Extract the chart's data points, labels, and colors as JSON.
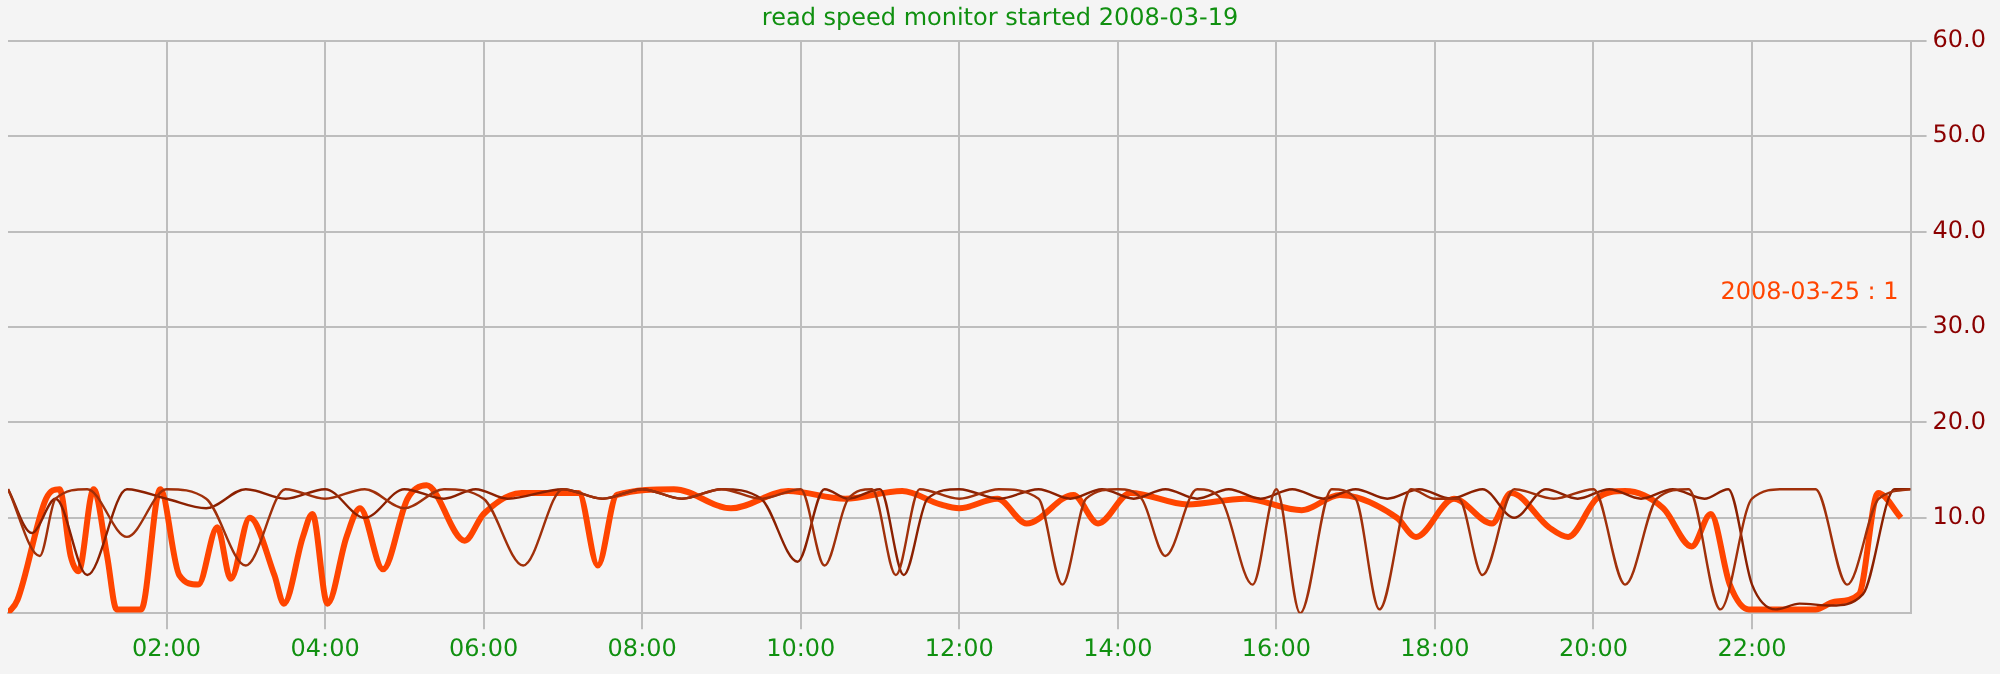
{
  "chart_data": {
    "type": "line",
    "title": "read speed monitor started 2008-03-19",
    "xlim": [
      0,
      24
    ],
    "xticks": [
      {
        "value": 2,
        "label": "02:00"
      },
      {
        "value": 4,
        "label": "04:00"
      },
      {
        "value": 6,
        "label": "06:00"
      },
      {
        "value": 8,
        "label": "08:00"
      },
      {
        "value": 10,
        "label": "10:00"
      },
      {
        "value": 12,
        "label": "12:00"
      },
      {
        "value": 14,
        "label": "14:00"
      },
      {
        "value": 16,
        "label": "16:00"
      },
      {
        "value": 18,
        "label": "18:00"
      },
      {
        "value": 20,
        "label": "20:00"
      },
      {
        "value": 22,
        "label": "22:00"
      }
    ],
    "ylim": [
      0,
      60
    ],
    "yticks": [
      {
        "value": 10,
        "label": "10.0"
      },
      {
        "value": 20,
        "label": "20.0"
      },
      {
        "value": 30,
        "label": "30.0"
      },
      {
        "value": 40,
        "label": "40.0"
      },
      {
        "value": 50,
        "label": "50.0"
      },
      {
        "value": 60,
        "label": "60.0"
      }
    ],
    "grid": true,
    "marker": "none",
    "line_style": "solid",
    "series": [
      {
        "color": "#a0300a",
        "x": [
          0,
          0.4,
          0.6,
          1,
          1.5,
          2,
          2.5,
          3,
          3.5,
          4,
          4.5,
          5,
          5.5,
          6,
          6.5,
          7,
          7.5,
          8,
          8.5,
          9,
          9.5,
          10,
          10.3,
          10.6,
          10.9,
          11.2,
          11.5,
          12,
          12.5,
          13,
          13.3,
          13.6,
          14,
          14.3,
          14.6,
          15,
          15.3,
          15.7,
          16,
          16.3,
          16.7,
          17,
          17.3,
          17.7,
          18,
          18.3,
          18.6,
          19,
          19.5,
          20,
          20.4,
          20.8,
          21.2,
          21.6,
          22,
          22.4,
          22.8,
          23.2,
          23.6,
          24
        ],
        "values": [
          13,
          6,
          12,
          13,
          8,
          13,
          12,
          5,
          13,
          12,
          13,
          11,
          13,
          12,
          5,
          13,
          12,
          13,
          12,
          13,
          12,
          13,
          5,
          12,
          13,
          4,
          13,
          12,
          13,
          12,
          3,
          12,
          13,
          12,
          6,
          13,
          12,
          3,
          13,
          0,
          13,
          12,
          0.4,
          13,
          12,
          12,
          4,
          13,
          12,
          13,
          3,
          12,
          13,
          0.4,
          12,
          13,
          13,
          3,
          12,
          13
        ]
      },
      {
        "color": "#8b2000",
        "x": [
          0,
          0.3,
          0.6,
          1,
          1.5,
          2,
          2.5,
          3,
          3.5,
          4,
          4.5,
          5,
          5.5,
          5.9,
          6.3,
          7,
          7.5,
          8,
          8.5,
          9,
          9.5,
          9.96,
          10.3,
          10.6,
          11,
          11.3,
          11.6,
          12,
          12.5,
          13,
          13.4,
          13.8,
          14.2,
          14.6,
          15,
          15.4,
          15.8,
          16.2,
          16.6,
          17,
          17.4,
          17.8,
          18.2,
          18.6,
          19,
          19.4,
          19.8,
          20.2,
          20.6,
          21,
          21.4,
          21.7,
          22,
          22.3,
          22.6,
          23,
          23.4,
          23.8,
          24
        ],
        "values": [
          13,
          8.4,
          12,
          4,
          13,
          12,
          11,
          13,
          12,
          13,
          10,
          13,
          12,
          13,
          12,
          13,
          12,
          13,
          12,
          13,
          12,
          5.4,
          13,
          12,
          13,
          4,
          12,
          13,
          12,
          13,
          12,
          13,
          12,
          13,
          12,
          13,
          12,
          13,
          12,
          13,
          12,
          13,
          12,
          13,
          10,
          13,
          12,
          13,
          12,
          13,
          12,
          13,
          3,
          0.4,
          1,
          0.8,
          2,
          13,
          13
        ]
      },
      {
        "name": "2008-03-25 : 1",
        "color": "#ff4500",
        "x": [
          0,
          0.12,
          0.48,
          0.65,
          0.79,
          0.89,
          1.08,
          1.25,
          1.37,
          1.68,
          1.92,
          2.16,
          2.4,
          2.64,
          2.81,
          3.05,
          3.36,
          3.48,
          3.72,
          3.84,
          4.03,
          4.27,
          4.44,
          4.73,
          5.04,
          5.28,
          5.76,
          6.0,
          6.48,
          7.2,
          7.44,
          7.68,
          8.4,
          9.12,
          9.84,
          10.56,
          11.28,
          11.76,
          12.0,
          12.48,
          12.85,
          13.44,
          13.75,
          14.16,
          14.88,
          15.6,
          16.32,
          16.8,
          17.52,
          17.76,
          18.24,
          18.72,
          18.96,
          19.44,
          19.68,
          20.04,
          20.4,
          20.88,
          21.24,
          21.48,
          21.72,
          21.96,
          22.8,
          23.04,
          23.35,
          23.59,
          23.88
        ],
        "values": [
          0,
          1.4,
          12,
          13,
          6,
          4.4,
          13,
          6,
          0.4,
          0.4,
          13,
          4,
          3,
          9,
          3.6,
          10,
          4,
          1,
          8,
          10.4,
          1,
          8,
          11,
          4.6,
          12,
          13.4,
          7.6,
          10.4,
          12.6,
          12.6,
          5,
          12.4,
          13,
          11,
          12.8,
          12,
          12.8,
          11.4,
          11,
          12,
          9.4,
          12.4,
          9.4,
          12.6,
          11.4,
          12,
          10.8,
          12.4,
          10,
          8,
          12,
          9.4,
          12.6,
          9,
          8,
          12,
          12.8,
          11,
          7,
          10.4,
          3,
          0.4,
          0.4,
          1.2,
          2,
          12.6,
          10
        ]
      }
    ]
  }
}
